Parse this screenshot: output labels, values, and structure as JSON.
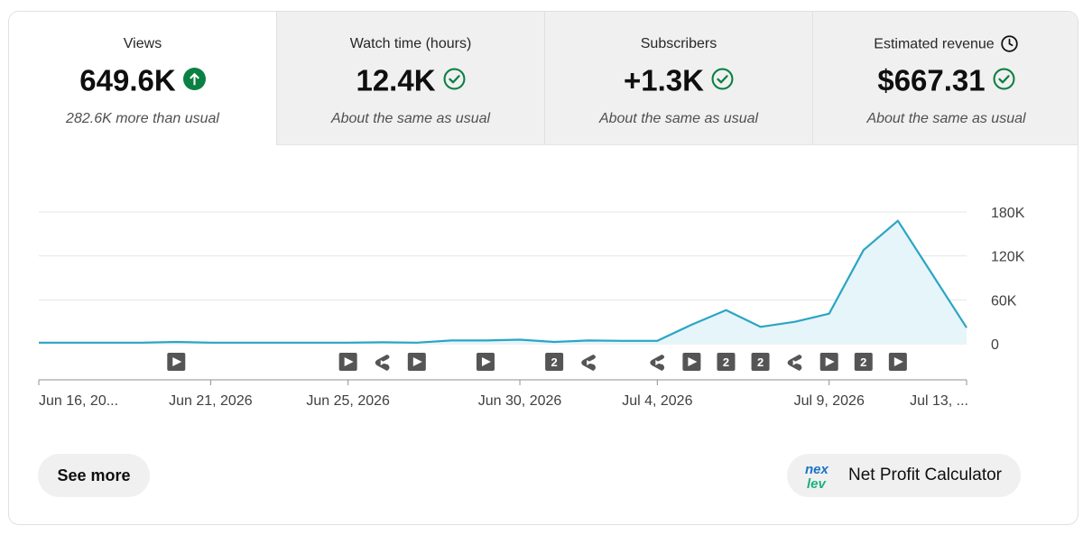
{
  "metrics": [
    {
      "label": "Views",
      "value": "649.6K",
      "status": "up-arrow-icon",
      "note": "282.6K more than usual",
      "active": true
    },
    {
      "label": "Watch time (hours)",
      "value": "12.4K",
      "status": "check-circle-icon",
      "note": "About the same as usual",
      "active": false
    },
    {
      "label": "Subscribers",
      "value": "+1.3K",
      "status": "check-circle-icon",
      "note": "About the same as usual",
      "active": false
    },
    {
      "label": "Estimated revenue",
      "value": "$667.31",
      "status": "check-circle-icon",
      "note": "About the same as usual",
      "active": false,
      "extra_icon": "clock-icon"
    }
  ],
  "colors": {
    "line": "#2ba5c4",
    "area": "#e6f5fa",
    "up_badge": "#0b8043",
    "check": "#0b8043",
    "grid": "#e5e5e5"
  },
  "chart_data": {
    "type": "area",
    "x": [
      "Jun 16, 2026",
      "Jun 17, 2026",
      "Jun 18, 2026",
      "Jun 19, 2026",
      "Jun 20, 2026",
      "Jun 21, 2026",
      "Jun 22, 2026",
      "Jun 23, 2026",
      "Jun 24, 2026",
      "Jun 25, 2026",
      "Jun 26, 2026",
      "Jun 27, 2026",
      "Jun 28, 2026",
      "Jun 29, 2026",
      "Jun 30, 2026",
      "Jul 1, 2026",
      "Jul 2, 2026",
      "Jul 3, 2026",
      "Jul 4, 2026",
      "Jul 5, 2026",
      "Jul 6, 2026",
      "Jul 7, 2026",
      "Jul 8, 2026",
      "Jul 9, 2026",
      "Jul 10, 2026",
      "Jul 11, 2026",
      "Jul 12, 2026",
      "Jul 13, 2026"
    ],
    "series": [
      {
        "values": [
          1500,
          1500,
          1500,
          1500,
          2500,
          1500,
          1500,
          1500,
          1500,
          1500,
          2000,
          1500,
          4500,
          4500,
          5500,
          2500,
          4500,
          4000,
          4000,
          26000,
          46000,
          23000,
          30000,
          41000,
          128000,
          168000,
          95000,
          22000
        ]
      }
    ],
    "ylim": [
      0,
      180000
    ],
    "y_ticks": [
      {
        "value": 0,
        "label": "0"
      },
      {
        "value": 60000,
        "label": "60K"
      },
      {
        "value": 120000,
        "label": "120K"
      },
      {
        "value": 180000,
        "label": "180K"
      }
    ],
    "x_tick_labels": [
      {
        "index": 0,
        "label": "Jun 16, 20..."
      },
      {
        "index": 5,
        "label": "Jun 21, 2026"
      },
      {
        "index": 9,
        "label": "Jun 25, 2026"
      },
      {
        "index": 14,
        "label": "Jun 30, 2026"
      },
      {
        "index": 18,
        "label": "Jul 4, 2026"
      },
      {
        "index": 23,
        "label": "Jul 9, 2026"
      },
      {
        "index": 27,
        "label": "Jul 13, ..."
      }
    ],
    "upload_markers": [
      {
        "index": 4,
        "kind": "video"
      },
      {
        "index": 9,
        "kind": "video"
      },
      {
        "index": 10,
        "kind": "short"
      },
      {
        "index": 11,
        "kind": "video"
      },
      {
        "index": 13,
        "kind": "video"
      },
      {
        "index": 15,
        "kind": "count",
        "count": "2"
      },
      {
        "index": 16,
        "kind": "short"
      },
      {
        "index": 18,
        "kind": "short"
      },
      {
        "index": 19,
        "kind": "video"
      },
      {
        "index": 20,
        "kind": "count",
        "count": "2"
      },
      {
        "index": 21,
        "kind": "count",
        "count": "2"
      },
      {
        "index": 22,
        "kind": "short"
      },
      {
        "index": 23,
        "kind": "video"
      },
      {
        "index": 24,
        "kind": "count",
        "count": "2"
      },
      {
        "index": 25,
        "kind": "video"
      }
    ],
    "grid": true
  },
  "buttons": {
    "see_more": "See more",
    "net_profit": "Net Profit Calculator",
    "logo_icon": "nexlev-logo-icon"
  }
}
